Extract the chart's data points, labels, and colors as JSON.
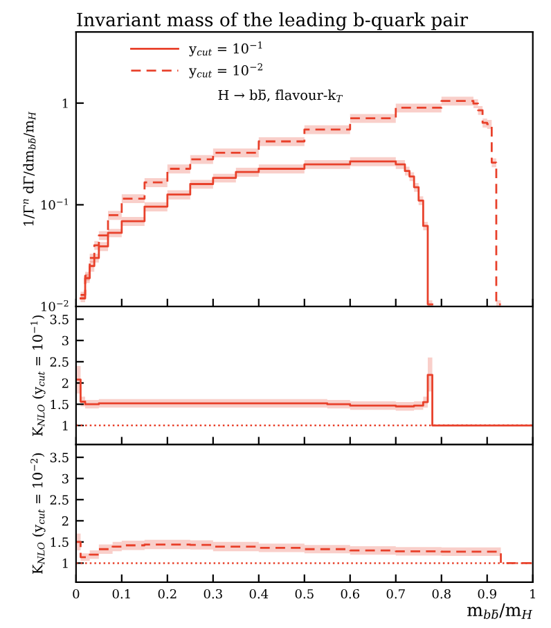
{
  "chart_data": [
    {
      "type": "step",
      "title": "Invariant mass of the leading b-quark pair",
      "ylabel": "1/Γ$^{n}$ dΓ/dm$_{bb̄}$/m$_{H}$",
      "log": "y",
      "xlim": [
        0,
        1
      ],
      "ylim": [
        0.01,
        5
      ],
      "xticks": [
        0,
        0.1,
        0.2,
        0.3,
        0.4,
        0.5,
        0.6,
        0.7,
        0.8,
        0.9,
        1
      ],
      "yticks": [
        {
          "value": 0.01,
          "label": "10$^{−2}$"
        },
        {
          "value": 0.1,
          "label": "10$^{−1}$"
        },
        1
      ],
      "tick_labels": "y",
      "legend": "top left",
      "annotations": [
        "H → bb̄, flavour-k$_{T}$"
      ],
      "series": [
        {
          "name": "y$_{cut}$ = 10$^{−1}$",
          "color": "#e8402a",
          "line_style": "solid",
          "x": [
            0.01,
            0.02,
            0.03,
            0.04,
            0.05,
            0.07,
            0.1,
            0.15,
            0.2,
            0.25,
            0.3,
            0.35,
            0.4,
            0.5,
            0.6,
            0.65,
            0.7,
            0.72,
            0.73,
            0.74,
            0.75,
            0.76,
            0.77,
            0.78
          ],
          "values": [
            0.012,
            0.019,
            0.025,
            0.03,
            0.039,
            0.053,
            0.069,
            0.096,
            0.126,
            0.16,
            0.184,
            0.21,
            0.226,
            0.25,
            0.267,
            0.267,
            0.25,
            0.215,
            0.19,
            0.149,
            0.11,
            0.062,
            0.0105,
            0.0105
          ],
          "lower": [
            0.011,
            0.017,
            0.022,
            0.027,
            0.035,
            0.048,
            0.062,
            0.086,
            0.113,
            0.144,
            0.166,
            0.189,
            0.203,
            0.225,
            0.24,
            0.24,
            0.225,
            0.194,
            0.171,
            0.134,
            0.099,
            0.056,
            0.01,
            0.01
          ],
          "upper": [
            0.013,
            0.021,
            0.028,
            0.033,
            0.043,
            0.058,
            0.076,
            0.106,
            0.139,
            0.176,
            0.202,
            0.231,
            0.249,
            0.275,
            0.294,
            0.294,
            0.275,
            0.237,
            0.209,
            0.164,
            0.121,
            0.068,
            0.0115,
            0.0115
          ]
        },
        {
          "name": "y$_{cut}$ = 10$^{−2}$",
          "color": "#e8402a",
          "line_style": "dashed",
          "x": [
            0.01,
            0.02,
            0.03,
            0.04,
            0.05,
            0.07,
            0.1,
            0.15,
            0.2,
            0.25,
            0.3,
            0.4,
            0.5,
            0.6,
            0.7,
            0.8,
            0.85,
            0.87,
            0.88,
            0.89,
            0.9,
            0.91,
            0.92,
            0.93
          ],
          "values": [
            0.013,
            0.02,
            0.03,
            0.04,
            0.05,
            0.079,
            0.115,
            0.166,
            0.226,
            0.28,
            0.325,
            0.42,
            0.55,
            0.71,
            0.9,
            1.05,
            1.05,
            0.99,
            0.85,
            0.64,
            0.62,
            0.26,
            0.0105,
            0.0105
          ],
          "lower": [
            0.012,
            0.018,
            0.027,
            0.036,
            0.045,
            0.071,
            0.104,
            0.149,
            0.203,
            0.252,
            0.293,
            0.378,
            0.495,
            0.639,
            0.81,
            0.945,
            0.945,
            0.891,
            0.765,
            0.576,
            0.558,
            0.234,
            0.01,
            0.01
          ],
          "upper": [
            0.014,
            0.022,
            0.033,
            0.044,
            0.055,
            0.087,
            0.127,
            0.183,
            0.249,
            0.308,
            0.358,
            0.462,
            0.605,
            0.781,
            0.99,
            1.155,
            1.155,
            1.089,
            0.935,
            0.704,
            0.682,
            0.286,
            0.0115,
            0.0115
          ]
        }
      ]
    },
    {
      "type": "step",
      "ylabel": "K$_{NLO}$ (y$_{cut}$ = 10$^{−1}$)",
      "xlim": [
        0,
        1
      ],
      "ylim": [
        0.55,
        3.8
      ],
      "xticks": [
        0,
        0.1,
        0.2,
        0.3,
        0.4,
        0.5,
        0.6,
        0.7,
        0.8,
        0.9,
        1
      ],
      "yticks": [
        1,
        1.5,
        2,
        2.5,
        3,
        3.5
      ],
      "tick_labels": "y",
      "ref_lines": [
        {
          "axis": "y",
          "value": 1,
          "color": "#e8402a",
          "line_style": "dotted"
        }
      ],
      "series": [
        {
          "color": "#e8402a",
          "line_style": "solid",
          "x": [
            0,
            0.01,
            0.02,
            0.05,
            0.1,
            0.2,
            0.3,
            0.4,
            0.5,
            0.55,
            0.6,
            0.7,
            0.74,
            0.76,
            0.77,
            0.78,
            1.0
          ],
          "values": [
            2.08,
            1.56,
            1.5,
            1.52,
            1.52,
            1.52,
            1.52,
            1.52,
            1.52,
            1.5,
            1.47,
            1.45,
            1.47,
            1.55,
            2.19,
            1.0,
            1.0
          ],
          "lower": [
            1.75,
            1.45,
            1.4,
            1.42,
            1.42,
            1.42,
            1.42,
            1.42,
            1.42,
            1.4,
            1.37,
            1.35,
            1.37,
            1.42,
            1.8,
            1.0,
            1.0
          ],
          "upper": [
            2.4,
            1.68,
            1.6,
            1.62,
            1.62,
            1.62,
            1.62,
            1.62,
            1.62,
            1.6,
            1.57,
            1.55,
            1.57,
            1.68,
            2.6,
            1.0,
            1.0
          ]
        }
      ]
    },
    {
      "type": "step",
      "ylabel": "K$_{NLO}$ (y$_{cut}$ = 10$^{−2}$)",
      "xlabel": "m$_{bb̄}$/m$_{H}$",
      "xlim": [
        0,
        1
      ],
      "ylim": [
        0.55,
        3.8
      ],
      "xticks": [
        0,
        0.1,
        0.2,
        0.3,
        0.4,
        0.5,
        0.6,
        0.7,
        0.8,
        0.9,
        1
      ],
      "yticks": [
        1,
        1.5,
        2,
        2.5,
        3,
        3.5
      ],
      "ref_lines": [
        {
          "axis": "y",
          "value": 1,
          "color": "#e8402a",
          "line_style": "dotted"
        }
      ],
      "series": [
        {
          "color": "#e8402a",
          "line_style": "dashed",
          "x": [
            0,
            0.01,
            0.03,
            0.05,
            0.08,
            0.1,
            0.15,
            0.2,
            0.25,
            0.3,
            0.4,
            0.5,
            0.6,
            0.7,
            0.8,
            0.92,
            0.93,
            1.0
          ],
          "values": [
            1.5,
            1.14,
            1.2,
            1.33,
            1.39,
            1.42,
            1.44,
            1.44,
            1.43,
            1.39,
            1.36,
            1.33,
            1.3,
            1.28,
            1.27,
            1.27,
            1.0,
            1.0
          ],
          "lower": [
            1.3,
            1.05,
            1.1,
            1.22,
            1.28,
            1.31,
            1.33,
            1.33,
            1.32,
            1.28,
            1.26,
            1.23,
            1.2,
            1.18,
            1.17,
            1.17,
            1.0,
            1.0
          ],
          "upper": [
            1.7,
            1.23,
            1.3,
            1.44,
            1.5,
            1.53,
            1.55,
            1.55,
            1.54,
            1.5,
            1.46,
            1.43,
            1.4,
            1.38,
            1.37,
            1.37,
            1.0,
            1.0
          ]
        }
      ]
    }
  ]
}
